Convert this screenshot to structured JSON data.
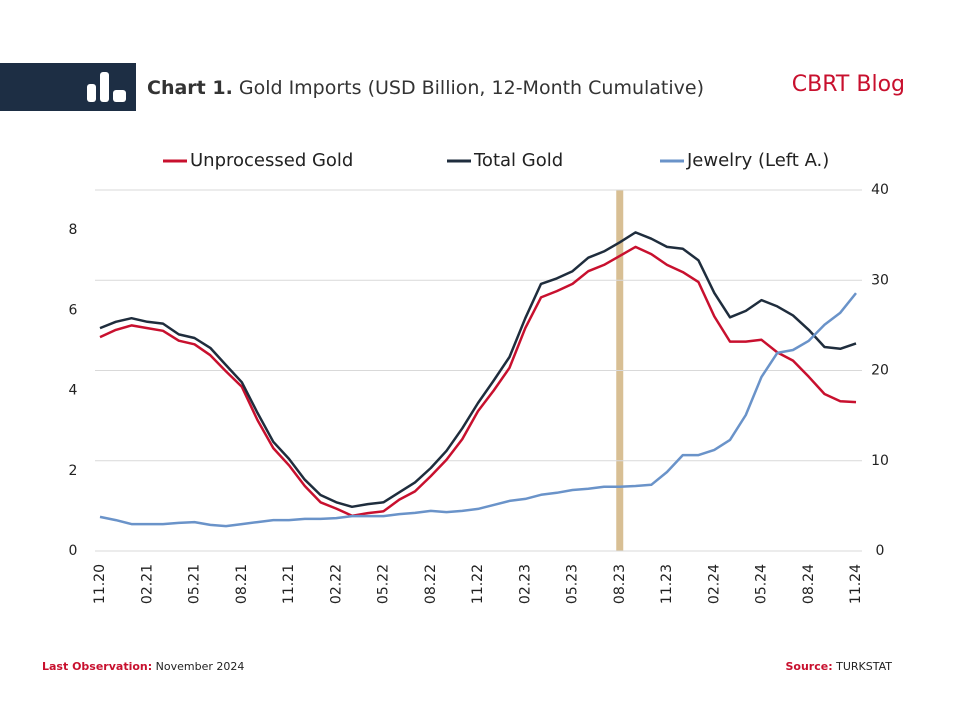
{
  "header": {
    "chart_number": "Chart 1.",
    "title": "Gold Imports (USD Billion, 12-Month Cumulative)",
    "brand": "CBRT Blog"
  },
  "footer": {
    "observation_label": "Last Observation:",
    "observation": "November 2024",
    "source_label": "Source:",
    "source": "TURKSTAT"
  },
  "chart_data": {
    "type": "line",
    "categories": [
      "11.20",
      null,
      null,
      "02.21",
      null,
      null,
      "05.21",
      null,
      null,
      "08.21",
      null,
      null,
      "11.21",
      null,
      null,
      "02.22",
      null,
      null,
      "05.22",
      null,
      null,
      "08.22",
      null,
      null,
      "11.22",
      null,
      null,
      "02.23",
      null,
      null,
      "05.23",
      null,
      null,
      "08.23",
      null,
      null,
      "11.23",
      null,
      null,
      "02.24",
      null,
      null,
      "05.24",
      null,
      null,
      "08.24",
      null,
      null,
      "11.24"
    ],
    "ylim": [
      0,
      9
    ],
    "yticks": [
      0,
      2,
      4,
      6,
      8
    ],
    "y2lim": [
      0,
      40
    ],
    "y2ticks": [
      0,
      10,
      20,
      30,
      40
    ],
    "grid": "y2",
    "series": [
      {
        "name": "Unprocessed Gold",
        "color": "#c8102e",
        "axis": "y2",
        "values": [
          23.7,
          24.5,
          25.0,
          24.7,
          24.4,
          23.3,
          22.9,
          21.7,
          19.9,
          18.2,
          14.5,
          11.4,
          9.5,
          7.2,
          5.4,
          4.7,
          3.9,
          4.2,
          4.4,
          5.7,
          6.6,
          8.3,
          10.1,
          12.4,
          15.5,
          17.8,
          20.3,
          24.7,
          28.1,
          28.8,
          29.6,
          31.0,
          31.7,
          32.7,
          33.7,
          32.9,
          31.7,
          30.9,
          29.8,
          26.0,
          23.2,
          23.2,
          23.4,
          22.0,
          21.1,
          19.3,
          17.4,
          16.6,
          16.5
        ]
      },
      {
        "name": "Total Gold",
        "color": "#1f2d3d",
        "axis": "y2",
        "values": [
          24.7,
          25.4,
          25.8,
          25.4,
          25.2,
          24.0,
          23.6,
          22.5,
          20.6,
          18.7,
          15.3,
          12.1,
          10.2,
          7.9,
          6.2,
          5.4,
          4.9,
          5.2,
          5.4,
          6.5,
          7.6,
          9.2,
          11.1,
          13.6,
          16.4,
          18.9,
          21.5,
          25.8,
          29.6,
          30.2,
          31.0,
          32.5,
          33.2,
          34.2,
          35.3,
          34.6,
          33.7,
          33.5,
          32.2,
          28.6,
          25.9,
          26.6,
          27.8,
          27.1,
          26.1,
          24.5,
          22.6,
          22.4,
          23.0
        ]
      },
      {
        "name": "Jewelry (Left A.)",
        "color": "#6a93c9",
        "axis": "y",
        "values": [
          0.85,
          0.77,
          0.67,
          0.67,
          0.67,
          0.7,
          0.72,
          0.65,
          0.62,
          0.67,
          0.72,
          0.77,
          0.77,
          0.8,
          0.8,
          0.82,
          0.87,
          0.87,
          0.87,
          0.92,
          0.95,
          1.0,
          0.97,
          1.0,
          1.05,
          1.15,
          1.25,
          1.3,
          1.4,
          1.45,
          1.52,
          1.55,
          1.6,
          1.6,
          1.62,
          1.65,
          1.97,
          2.39,
          2.39,
          2.52,
          2.77,
          3.39,
          4.34,
          4.94,
          5.01,
          5.24,
          5.64,
          5.94,
          6.43
        ]
      }
    ]
  }
}
